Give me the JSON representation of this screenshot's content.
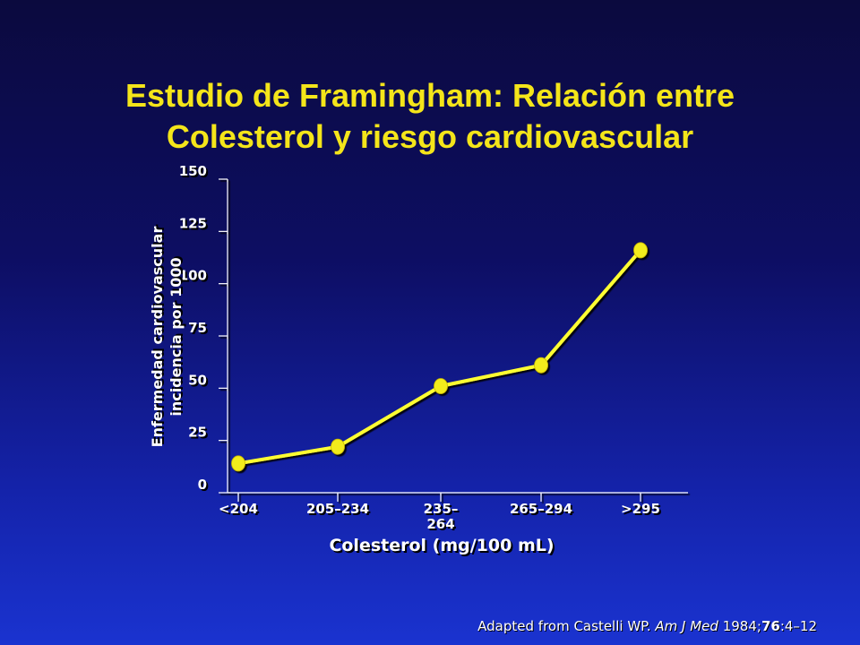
{
  "title_line1": "Estudio de Framingham: Relación entre",
  "title_line2": "Colesterol y  riesgo cardiovascular",
  "citation": {
    "prefix": "Adapted from Castelli WP. ",
    "journal": "Am J Med",
    "year": " 1984;",
    "volume": "76",
    "pages": ":4–12"
  },
  "colors": {
    "title": "#f4e51a",
    "line": "#ffff33",
    "marker": "#f2ec1a",
    "axis": "#ffffff"
  },
  "chart_data": {
    "type": "line",
    "title": "",
    "xlabel": "Colesterol (mg/100 mL)",
    "ylabel": [
      "Enfermedad cardiovascular",
      "incidencia por 1000"
    ],
    "ylim": [
      0,
      150
    ],
    "yticks": [
      "0",
      "25",
      "50",
      "75",
      "100",
      "125",
      "150"
    ],
    "categories": [
      "<204",
      "205–234",
      "235–\n264",
      "265–294",
      ">295"
    ],
    "series": [
      {
        "values": [
          14,
          22,
          51,
          61,
          116
        ]
      }
    ],
    "grid": false,
    "legend": "none"
  }
}
